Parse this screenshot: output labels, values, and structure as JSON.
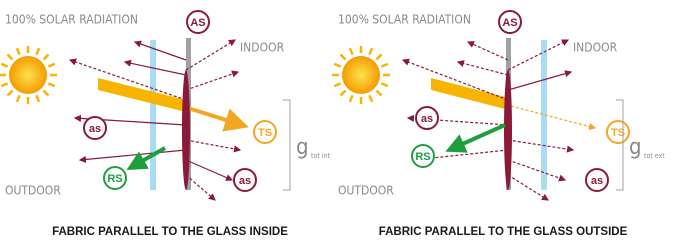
{
  "panels": [
    {
      "radiation": "100% SOLAR RADIATION",
      "absorbed_fabric": "AS",
      "indoor": "INDOOR",
      "transmitted": "TS",
      "absorbed_outer": "as",
      "absorbed_inner": "as",
      "reflected": "RS",
      "outdoor": "OUTDOOR",
      "g_symbol": "g",
      "g_subscript": "tot int",
      "caption": "FABRIC PARALLEL TO THE GLASS INSIDE"
    },
    {
      "radiation": "100% SOLAR RADIATION",
      "absorbed_fabric": "AS",
      "indoor": "INDOOR",
      "transmitted": "TS",
      "absorbed_outer": "as",
      "absorbed_inner": "as",
      "reflected": "RS",
      "outdoor": "OUTDOOR",
      "g_symbol": "g",
      "g_subscript": "tot ext",
      "caption": "FABRIC PARALLEL TO THE GLASS OUTSIDE"
    }
  ]
}
